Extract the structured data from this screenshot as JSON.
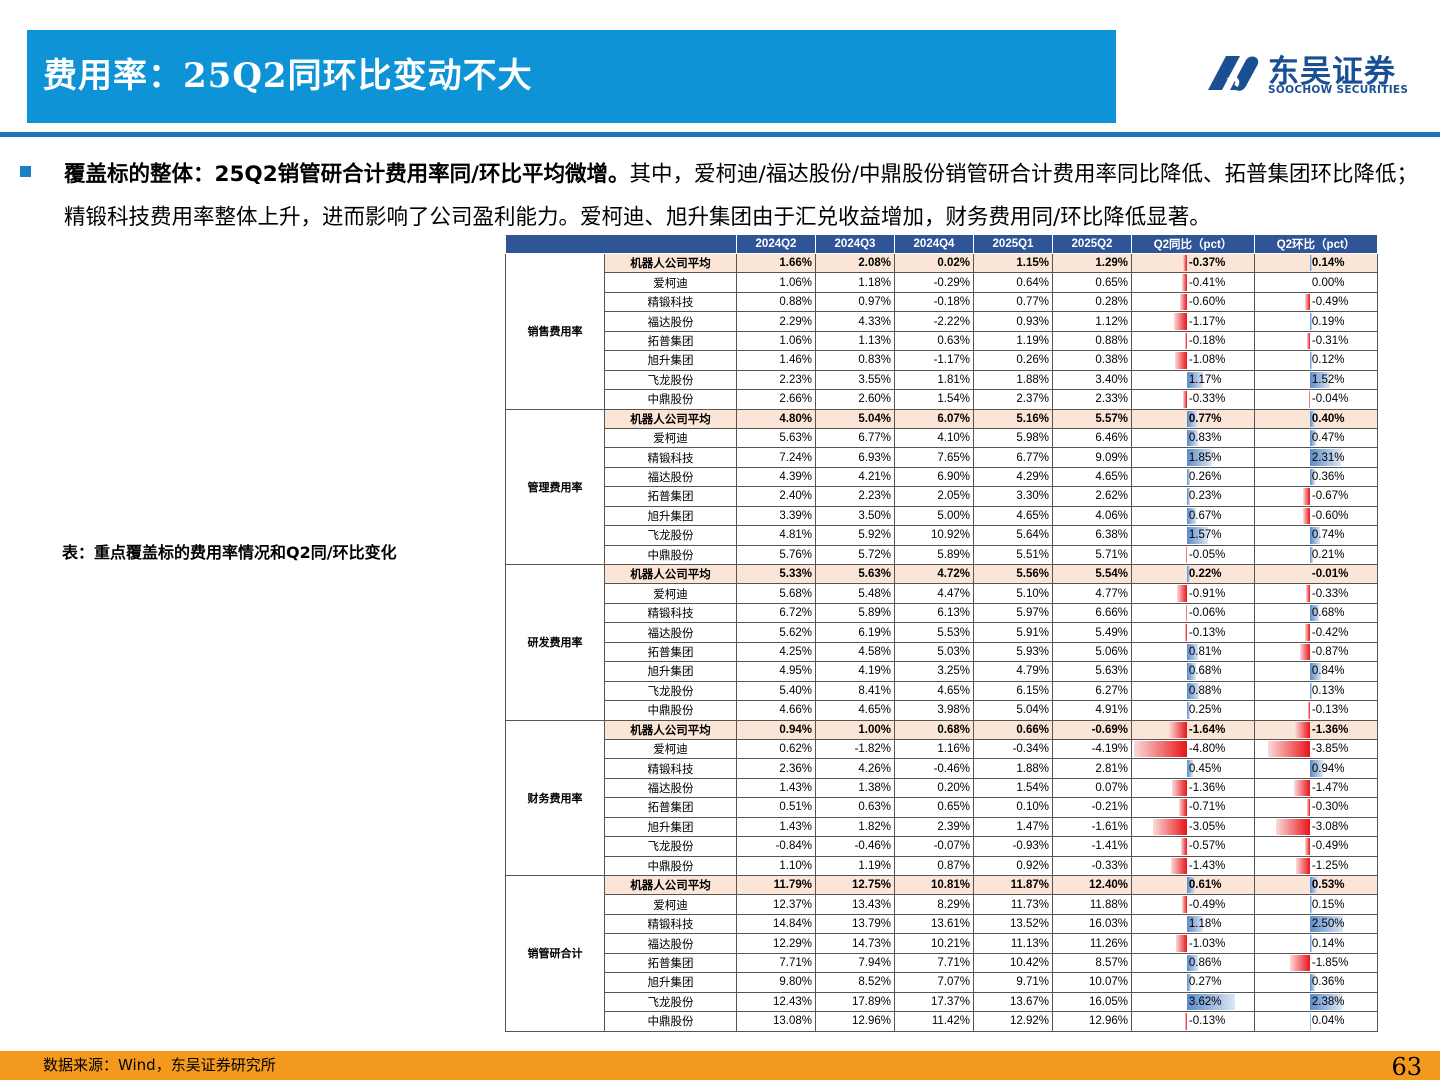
{
  "header": {
    "title": "费用率：25Q2同环比变动不大",
    "logo_cn": "东吴证券",
    "logo_en": "SOOCHOW SECURITIES"
  },
  "body": {
    "bold_lead": "覆盖标的整体：25Q2销管研合计费用率同/环比平均微增。",
    "rest": "其中，爱柯迪/福达股份/中鼎股份销管研合计费用率同比降低、拓普集团环比降低；精锻科技费用率整体上升，进而影响了公司盈利能力。爱柯迪、旭升集团由于汇兑收益增加，财务费用同/环比降低显著。"
  },
  "caption": "表：重点覆盖标的费用率情况和Q2同/环比变化",
  "table": {
    "headers": [
      "",
      "",
      "2024Q2",
      "2024Q3",
      "2024Q4",
      "2025Q1",
      "2025Q2",
      "Q2同比（pct）",
      "Q2环比（pct）"
    ],
    "bar_scale": 5.0,
    "groups": [
      {
        "label": "销售费用率",
        "rows": [
          {
            "name": "机器人公司平均",
            "vals": [
              "1.66%",
              "2.08%",
              "0.02%",
              "1.15%",
              "1.29%"
            ],
            "yoy": "-0.37%",
            "yoy_v": -0.37,
            "qoq": "0.14%",
            "qoq_v": 0.14
          },
          {
            "name": "爱柯迪",
            "vals": [
              "1.06%",
              "1.18%",
              "-0.29%",
              "0.64%",
              "0.65%"
            ],
            "yoy": "-0.41%",
            "yoy_v": -0.41,
            "qoq": "0.00%",
            "qoq_v": 0.0
          },
          {
            "name": "精锻科技",
            "vals": [
              "0.88%",
              "0.97%",
              "-0.18%",
              "0.77%",
              "0.28%"
            ],
            "yoy": "-0.60%",
            "yoy_v": -0.6,
            "qoq": "-0.49%",
            "qoq_v": -0.49
          },
          {
            "name": "福达股份",
            "vals": [
              "2.29%",
              "4.33%",
              "-2.22%",
              "0.93%",
              "1.12%"
            ],
            "yoy": "-1.17%",
            "yoy_v": -1.17,
            "qoq": "0.19%",
            "qoq_v": 0.19
          },
          {
            "name": "拓普集团",
            "vals": [
              "1.06%",
              "1.13%",
              "0.63%",
              "1.19%",
              "0.88%"
            ],
            "yoy": "-0.18%",
            "yoy_v": -0.18,
            "qoq": "-0.31%",
            "qoq_v": -0.31
          },
          {
            "name": "旭升集团",
            "vals": [
              "1.46%",
              "0.83%",
              "-1.17%",
              "0.26%",
              "0.38%"
            ],
            "yoy": "-1.08%",
            "yoy_v": -1.08,
            "qoq": "0.12%",
            "qoq_v": 0.12
          },
          {
            "name": "飞龙股份",
            "vals": [
              "2.23%",
              "3.55%",
              "1.81%",
              "1.88%",
              "3.40%"
            ],
            "yoy": "1.17%",
            "yoy_v": 1.17,
            "qoq": "1.52%",
            "qoq_v": 1.52
          },
          {
            "name": "中鼎股份",
            "vals": [
              "2.66%",
              "2.60%",
              "1.54%",
              "2.37%",
              "2.33%"
            ],
            "yoy": "-0.33%",
            "yoy_v": -0.33,
            "qoq": "-0.04%",
            "qoq_v": -0.04
          }
        ]
      },
      {
        "label": "管理费用率",
        "rows": [
          {
            "name": "机器人公司平均",
            "vals": [
              "4.80%",
              "5.04%",
              "6.07%",
              "5.16%",
              "5.57%"
            ],
            "yoy": "0.77%",
            "yoy_v": 0.77,
            "qoq": "0.40%",
            "qoq_v": 0.4
          },
          {
            "name": "爱柯迪",
            "vals": [
              "5.63%",
              "6.77%",
              "4.10%",
              "5.98%",
              "6.46%"
            ],
            "yoy": "0.83%",
            "yoy_v": 0.83,
            "qoq": "0.47%",
            "qoq_v": 0.47
          },
          {
            "name": "精锻科技",
            "vals": [
              "7.24%",
              "6.93%",
              "7.65%",
              "6.77%",
              "9.09%"
            ],
            "yoy": "1.85%",
            "yoy_v": 1.85,
            "qoq": "2.31%",
            "qoq_v": 2.31
          },
          {
            "name": "福达股份",
            "vals": [
              "4.39%",
              "4.21%",
              "6.90%",
              "4.29%",
              "4.65%"
            ],
            "yoy": "0.26%",
            "yoy_v": 0.26,
            "qoq": "0.36%",
            "qoq_v": 0.36
          },
          {
            "name": "拓普集团",
            "vals": [
              "2.40%",
              "2.23%",
              "2.05%",
              "3.30%",
              "2.62%"
            ],
            "yoy": "0.23%",
            "yoy_v": 0.23,
            "qoq": "-0.67%",
            "qoq_v": -0.67
          },
          {
            "name": "旭升集团",
            "vals": [
              "3.39%",
              "3.50%",
              "5.00%",
              "4.65%",
              "4.06%"
            ],
            "yoy": "0.67%",
            "yoy_v": 0.67,
            "qoq": "-0.60%",
            "qoq_v": -0.6
          },
          {
            "name": "飞龙股份",
            "vals": [
              "4.81%",
              "5.92%",
              "10.92%",
              "5.64%",
              "6.38%"
            ],
            "yoy": "1.57%",
            "yoy_v": 1.57,
            "qoq": "0.74%",
            "qoq_v": 0.74
          },
          {
            "name": "中鼎股份",
            "vals": [
              "5.76%",
              "5.72%",
              "5.89%",
              "5.51%",
              "5.71%"
            ],
            "yoy": "-0.05%",
            "yoy_v": -0.05,
            "qoq": "0.21%",
            "qoq_v": 0.21
          }
        ]
      },
      {
        "label": "研发费用率",
        "rows": [
          {
            "name": "机器人公司平均",
            "vals": [
              "5.33%",
              "5.63%",
              "4.72%",
              "5.56%",
              "5.54%"
            ],
            "yoy": "0.22%",
            "yoy_v": 0.22,
            "qoq": "-0.01%",
            "qoq_v": -0.01
          },
          {
            "name": "爱柯迪",
            "vals": [
              "5.68%",
              "5.48%",
              "4.47%",
              "5.10%",
              "4.77%"
            ],
            "yoy": "-0.91%",
            "yoy_v": -0.91,
            "qoq": "-0.33%",
            "qoq_v": -0.33
          },
          {
            "name": "精锻科技",
            "vals": [
              "6.72%",
              "5.89%",
              "6.13%",
              "5.97%",
              "6.66%"
            ],
            "yoy": "-0.06%",
            "yoy_v": -0.06,
            "qoq": "0.68%",
            "qoq_v": 0.68
          },
          {
            "name": "福达股份",
            "vals": [
              "5.62%",
              "6.19%",
              "5.53%",
              "5.91%",
              "5.49%"
            ],
            "yoy": "-0.13%",
            "yoy_v": -0.13,
            "qoq": "-0.42%",
            "qoq_v": -0.42
          },
          {
            "name": "拓普集团",
            "vals": [
              "4.25%",
              "4.58%",
              "5.03%",
              "5.93%",
              "5.06%"
            ],
            "yoy": "0.81%",
            "yoy_v": 0.81,
            "qoq": "-0.87%",
            "qoq_v": -0.87
          },
          {
            "name": "旭升集团",
            "vals": [
              "4.95%",
              "4.19%",
              "3.25%",
              "4.79%",
              "5.63%"
            ],
            "yoy": "0.68%",
            "yoy_v": 0.68,
            "qoq": "0.84%",
            "qoq_v": 0.84
          },
          {
            "name": "飞龙股份",
            "vals": [
              "5.40%",
              "8.41%",
              "4.65%",
              "6.15%",
              "6.27%"
            ],
            "yoy": "0.88%",
            "yoy_v": 0.88,
            "qoq": "0.13%",
            "qoq_v": 0.13
          },
          {
            "name": "中鼎股份",
            "vals": [
              "4.66%",
              "4.65%",
              "3.98%",
              "5.04%",
              "4.91%"
            ],
            "yoy": "0.25%",
            "yoy_v": 0.25,
            "qoq": "-0.13%",
            "qoq_v": -0.13
          }
        ]
      },
      {
        "label": "财务费用率",
        "rows": [
          {
            "name": "机器人公司平均",
            "vals": [
              "0.94%",
              "1.00%",
              "0.68%",
              "0.66%",
              "-0.69%"
            ],
            "yoy": "-1.64%",
            "yoy_v": -1.64,
            "qoq": "-1.36%",
            "qoq_v": -1.36
          },
          {
            "name": "爱柯迪",
            "vals": [
              "0.62%",
              "-1.82%",
              "1.16%",
              "-0.34%",
              "-4.19%"
            ],
            "yoy": "-4.80%",
            "yoy_v": -4.8,
            "qoq": "-3.85%",
            "qoq_v": -3.85
          },
          {
            "name": "精锻科技",
            "vals": [
              "2.36%",
              "4.26%",
              "-0.46%",
              "1.88%",
              "2.81%"
            ],
            "yoy": "0.45%",
            "yoy_v": 0.45,
            "qoq": "0.94%",
            "qoq_v": 0.94
          },
          {
            "name": "福达股份",
            "vals": [
              "1.43%",
              "1.38%",
              "0.20%",
              "1.54%",
              "0.07%"
            ],
            "yoy": "-1.36%",
            "yoy_v": -1.36,
            "qoq": "-1.47%",
            "qoq_v": -1.47
          },
          {
            "name": "拓普集团",
            "vals": [
              "0.51%",
              "0.63%",
              "0.65%",
              "0.10%",
              "-0.21%"
            ],
            "yoy": "-0.71%",
            "yoy_v": -0.71,
            "qoq": "-0.30%",
            "qoq_v": -0.3
          },
          {
            "name": "旭升集团",
            "vals": [
              "1.43%",
              "1.82%",
              "2.39%",
              "1.47%",
              "-1.61%"
            ],
            "yoy": "-3.05%",
            "yoy_v": -3.05,
            "qoq": "-3.08%",
            "qoq_v": -3.08
          },
          {
            "name": "飞龙股份",
            "vals": [
              "-0.84%",
              "-0.46%",
              "-0.07%",
              "-0.93%",
              "-1.41%"
            ],
            "yoy": "-0.57%",
            "yoy_v": -0.57,
            "qoq": "-0.49%",
            "qoq_v": -0.49
          },
          {
            "name": "中鼎股份",
            "vals": [
              "1.10%",
              "1.19%",
              "0.87%",
              "0.92%",
              "-0.33%"
            ],
            "yoy": "-1.43%",
            "yoy_v": -1.43,
            "qoq": "-1.25%",
            "qoq_v": -1.25
          }
        ]
      },
      {
        "label": "销管研合计",
        "rows": [
          {
            "name": "机器人公司平均",
            "vals": [
              "11.79%",
              "12.75%",
              "10.81%",
              "11.87%",
              "12.40%"
            ],
            "yoy": "0.61%",
            "yoy_v": 0.61,
            "qoq": "0.53%",
            "qoq_v": 0.53
          },
          {
            "name": "爱柯迪",
            "vals": [
              "12.37%",
              "13.43%",
              "8.29%",
              "11.73%",
              "11.88%"
            ],
            "yoy": "-0.49%",
            "yoy_v": -0.49,
            "qoq": "0.15%",
            "qoq_v": 0.15
          },
          {
            "name": "精锻科技",
            "vals": [
              "14.84%",
              "13.79%",
              "13.61%",
              "13.52%",
              "16.03%"
            ],
            "yoy": "1.18%",
            "yoy_v": 1.18,
            "qoq": "2.50%",
            "qoq_v": 2.5
          },
          {
            "name": "福达股份",
            "vals": [
              "12.29%",
              "14.73%",
              "10.21%",
              "11.13%",
              "11.26%"
            ],
            "yoy": "-1.03%",
            "yoy_v": -1.03,
            "qoq": "0.14%",
            "qoq_v": 0.14
          },
          {
            "name": "拓普集团",
            "vals": [
              "7.71%",
              "7.94%",
              "7.71%",
              "10.42%",
              "8.57%"
            ],
            "yoy": "0.86%",
            "yoy_v": 0.86,
            "qoq": "-1.85%",
            "qoq_v": -1.85
          },
          {
            "name": "旭升集团",
            "vals": [
              "9.80%",
              "8.52%",
              "7.07%",
              "9.71%",
              "10.07%"
            ],
            "yoy": "0.27%",
            "yoy_v": 0.27,
            "qoq": "0.36%",
            "qoq_v": 0.36
          },
          {
            "name": "飞龙股份",
            "vals": [
              "12.43%",
              "17.89%",
              "17.37%",
              "13.67%",
              "16.05%"
            ],
            "yoy": "3.62%",
            "yoy_v": 3.62,
            "qoq": "2.38%",
            "qoq_v": 2.38
          },
          {
            "name": "中鼎股份",
            "vals": [
              "13.08%",
              "12.96%",
              "11.42%",
              "12.92%",
              "12.96%"
            ],
            "yoy": "-0.13%",
            "yoy_v": -0.13,
            "qoq": "0.04%",
            "qoq_v": 0.04
          }
        ]
      }
    ]
  },
  "footer": {
    "source": "数据来源：Wind，东吴证券研究所",
    "page": "63"
  },
  "colors": {
    "title_bar": "#0e93d6",
    "header_fill": "#2f5597",
    "avg_row": "#fbe5d6",
    "bar_positive": "#5b8cc8",
    "bar_negative": "#e8151b",
    "footer": "#f39a1e"
  }
}
